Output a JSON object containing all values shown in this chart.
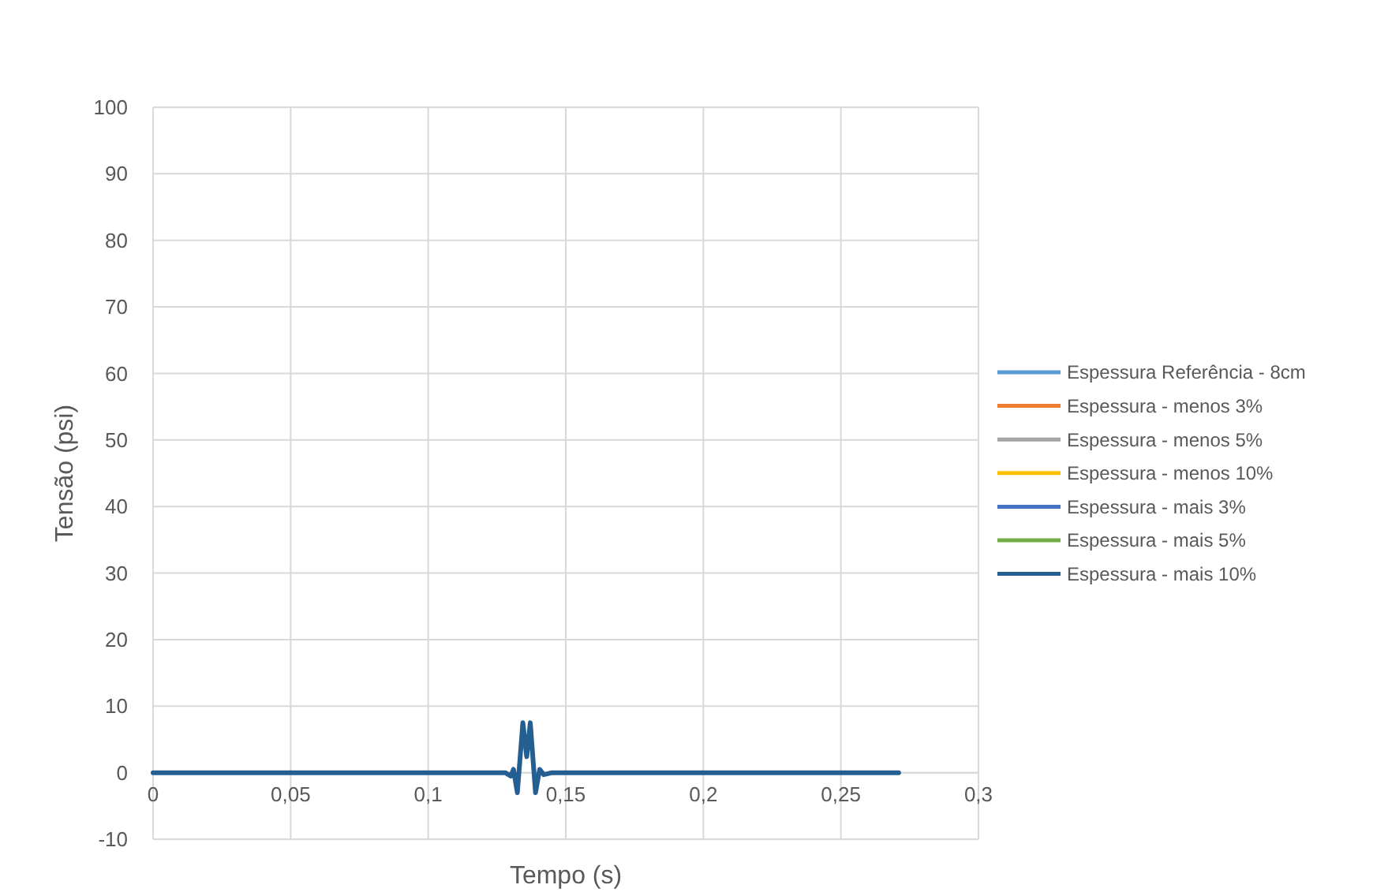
{
  "chart_data": {
    "type": "line",
    "xlabel": "Tempo (s)",
    "ylabel": "Tensão (psi)",
    "xlim": [
      0,
      0.3
    ],
    "xticks": [
      0,
      {
        "value": 0.05,
        "label": "0,05"
      },
      {
        "value": 0.1,
        "label": "0,1"
      },
      {
        "value": 0.15,
        "label": "0,15"
      },
      {
        "value": 0.2,
        "label": "0,2"
      },
      {
        "value": 0.25,
        "label": "0,25"
      },
      {
        "value": 0.3,
        "label": "0,3"
      }
    ],
    "ylim": [
      -10,
      100
    ],
    "yticks": [
      -10,
      0,
      10,
      20,
      30,
      40,
      50,
      60,
      70,
      80,
      90,
      100
    ],
    "grid": true,
    "legend": "right",
    "line_style": "solid",
    "marker": "none",
    "x": [
      0,
      0.1,
      0.128,
      0.13,
      0.131,
      0.1324,
      0.1344,
      0.1358,
      0.1371,
      0.139,
      0.1405,
      0.142,
      0.145,
      0.271
    ],
    "series": [
      {
        "name": "Espessura Referência - 8cm",
        "color": "#5b9bd5",
        "values": [
          null,
          null,
          null,
          null,
          null,
          null,
          null,
          null,
          null,
          null,
          null,
          null,
          null,
          null
        ]
      },
      {
        "name": "Espessura - menos 3%",
        "color": "#ed7d31",
        "values": [
          null,
          null,
          null,
          null,
          null,
          null,
          null,
          null,
          null,
          null,
          null,
          null,
          null,
          null
        ]
      },
      {
        "name": "Espessura - menos 5%",
        "color": "#a5a5a5",
        "values": [
          null,
          null,
          null,
          null,
          null,
          null,
          null,
          null,
          null,
          null,
          null,
          null,
          null,
          null
        ]
      },
      {
        "name": "Espessura - menos 10%",
        "color": "#ffc000",
        "values": [
          null,
          null,
          null,
          null,
          null,
          null,
          null,
          null,
          null,
          null,
          null,
          null,
          null,
          null
        ]
      },
      {
        "name": "Espessura - mais 3%",
        "color": "#4472c4",
        "values": [
          null,
          null,
          null,
          null,
          null,
          null,
          null,
          null,
          null,
          null,
          null,
          null,
          null,
          null
        ]
      },
      {
        "name": "Espessura - mais 5%",
        "color": "#70ad47",
        "values": [
          null,
          null,
          null,
          null,
          null,
          null,
          null,
          null,
          null,
          null,
          null,
          null,
          null,
          null
        ]
      },
      {
        "name": "Espessura - mais 10%",
        "color": "#255e91",
        "values": [
          0,
          0,
          0,
          -0.5,
          0.5,
          -3,
          7.5,
          2.4,
          7.5,
          -3,
          0.5,
          -0.3,
          0,
          0
        ]
      }
    ]
  }
}
